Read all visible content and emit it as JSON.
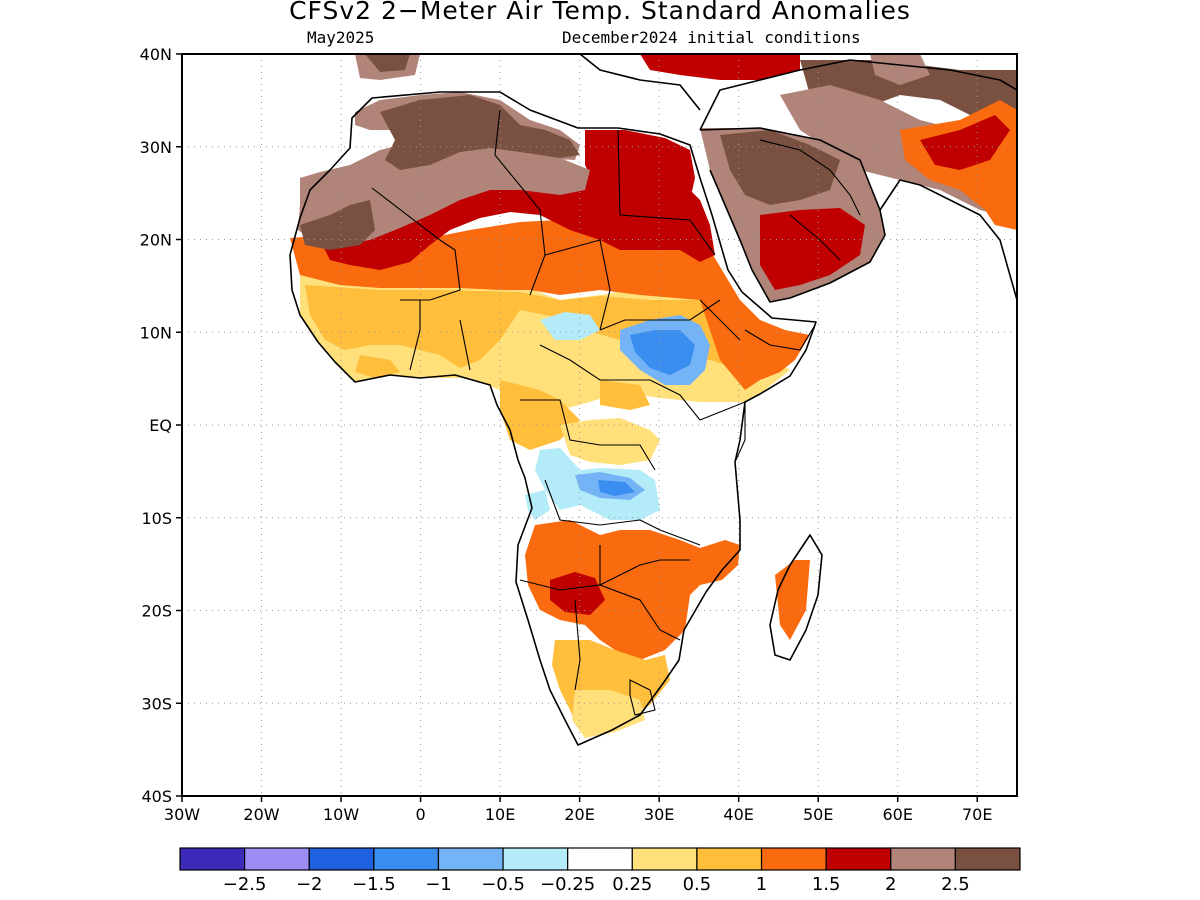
{
  "title": "CFSv2 2−Meter Air Temp. Standard Anomalies",
  "subtitle_left": "May2025",
  "subtitle_right": "December2024 initial conditions",
  "axes": {
    "lat_labels": [
      "40N",
      "30N",
      "20N",
      "10N",
      "EQ",
      "10S",
      "20S",
      "30S",
      "40S"
    ],
    "lon_labels": [
      "30W",
      "20W",
      "10W",
      "0",
      "10E",
      "20E",
      "30E",
      "40E",
      "50E",
      "60E",
      "70E"
    ]
  },
  "colorbar": {
    "colors": [
      "#3c2bb8",
      "#9e8cf5",
      "#1f61e0",
      "#3a8ef0",
      "#74b4f6",
      "#b3ecf8",
      "#ffffff",
      "#ffe07a",
      "#ffbe3c",
      "#fa6a0e",
      "#c00000",
      "#b08478",
      "#7a5040"
    ],
    "labels": [
      "−2.5",
      "−2",
      "−1.5",
      "−1",
      "−0.5",
      "−0.25",
      "0.25",
      "0.5",
      "1",
      "1.5",
      "2",
      "2.5"
    ]
  }
}
